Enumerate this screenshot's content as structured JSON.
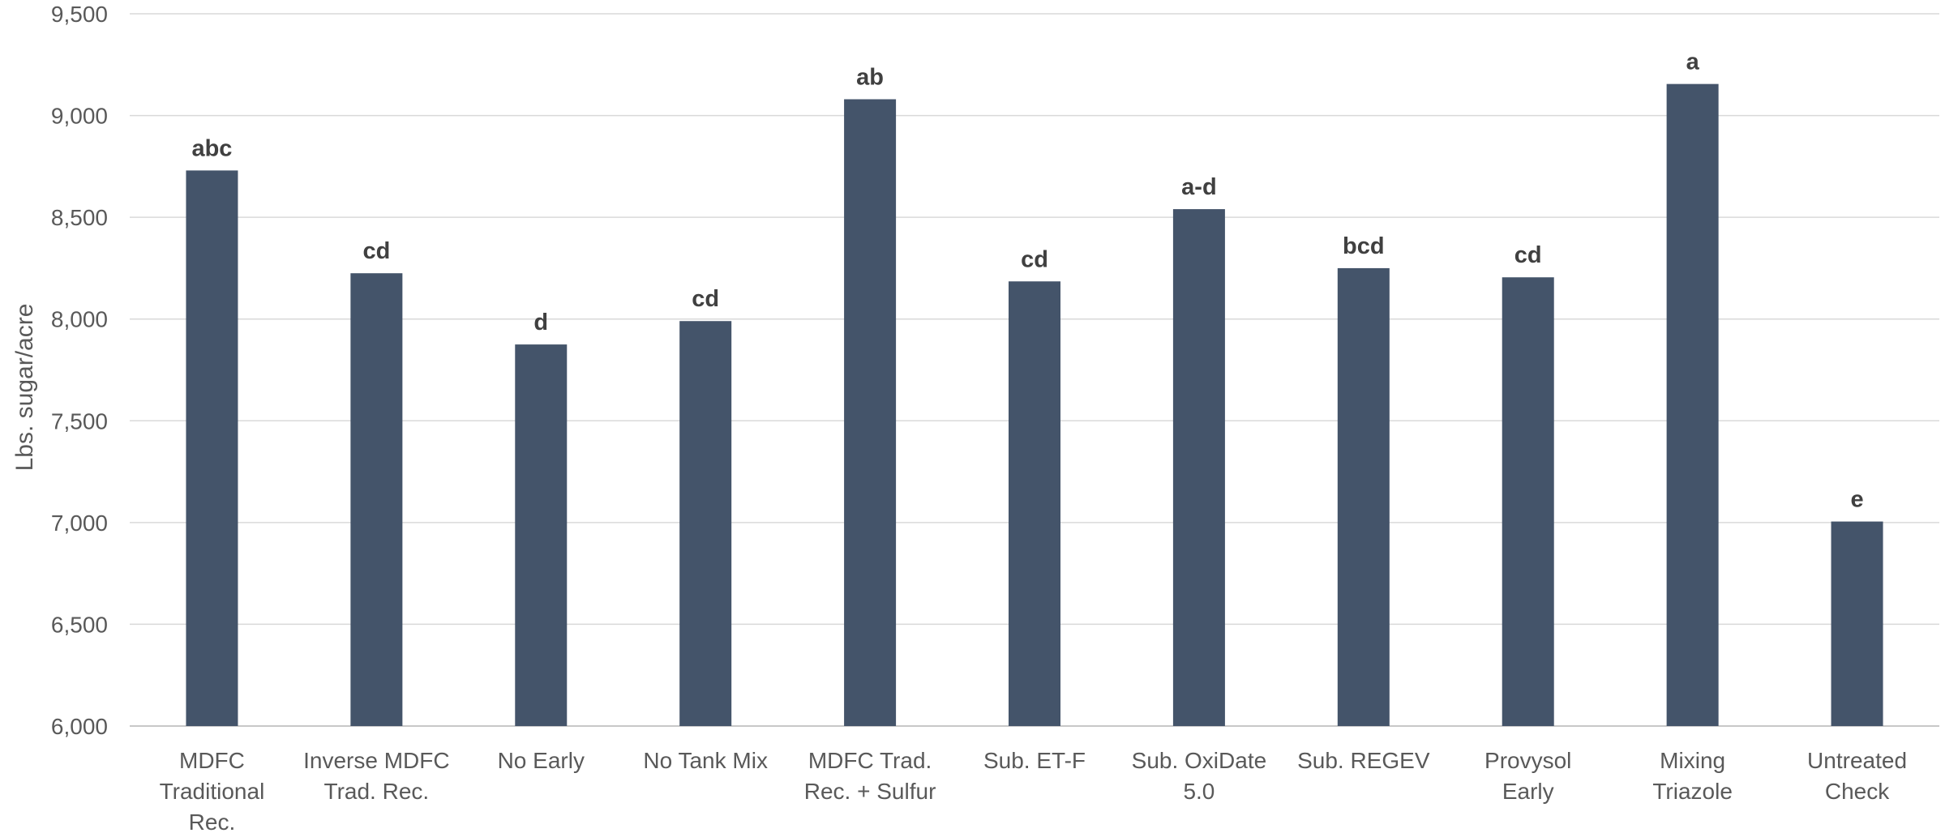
{
  "chart_data": {
    "type": "bar",
    "title": "",
    "xlabel": "",
    "ylabel": "Lbs. sugar/acre",
    "ylim": [
      6000,
      9500
    ],
    "yticks": [
      6000,
      6500,
      7000,
      7500,
      8000,
      8500,
      9000,
      9500
    ],
    "ytick_labels": [
      "6,000",
      "6,500",
      "7,000",
      "7,500",
      "8,000",
      "8,500",
      "9,000",
      "9,500"
    ],
    "grid": true,
    "legend": "none",
    "bar_color": "#44546a",
    "categories": [
      [
        "MDFC",
        "Traditional",
        "Rec."
      ],
      [
        "Inverse MDFC",
        "Trad. Rec."
      ],
      [
        "No Early"
      ],
      [
        "No Tank Mix"
      ],
      [
        "MDFC Trad.",
        "Rec. + Sulfur"
      ],
      [
        "Sub. ET-F"
      ],
      [
        "Sub. OxiDate",
        "5.0"
      ],
      [
        "Sub. REGEV"
      ],
      [
        "Provysol",
        "Early"
      ],
      [
        "Mixing",
        "Triazole"
      ],
      [
        "Untreated",
        "Check"
      ]
    ],
    "values": [
      8730,
      8225,
      7875,
      7990,
      9080,
      8185,
      8540,
      8250,
      8205,
      9155,
      7005
    ],
    "data_labels": [
      "abc",
      "cd",
      "d",
      "cd",
      "ab",
      "cd",
      "a-d",
      "bcd",
      "cd",
      "a",
      "e"
    ]
  }
}
